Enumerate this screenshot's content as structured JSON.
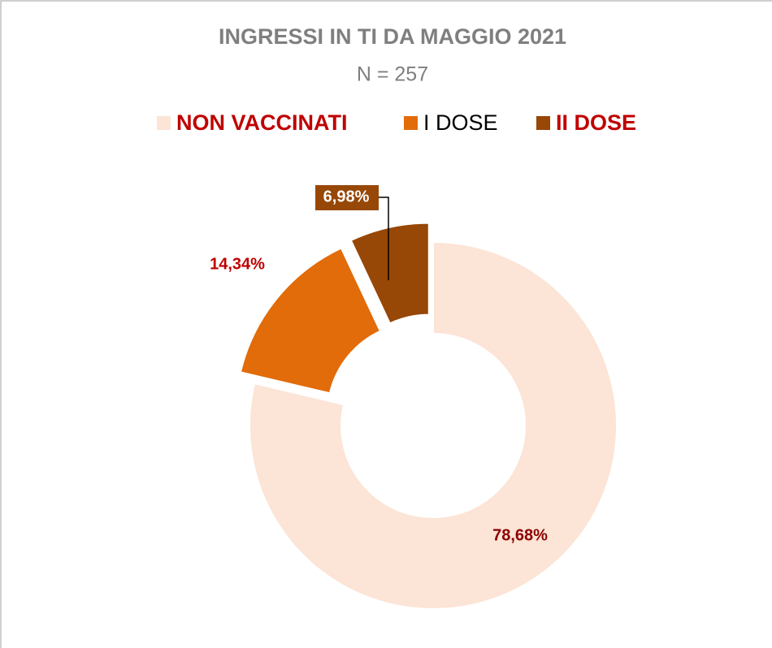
{
  "chart_data": {
    "type": "pie",
    "title": "INGRESSI IN TI DA MAGGIO 2021",
    "subtitle": "N = 257",
    "categories": [
      "NON VACCINATI",
      "I DOSE",
      "II DOSE"
    ],
    "values": [
      78.68,
      14.34,
      6.98
    ],
    "value_labels": [
      "78,68%",
      "14,34%",
      "6,98%"
    ],
    "colors": [
      "#fce4d6",
      "#e26b0a",
      "#974706"
    ],
    "legend": "top"
  }
}
